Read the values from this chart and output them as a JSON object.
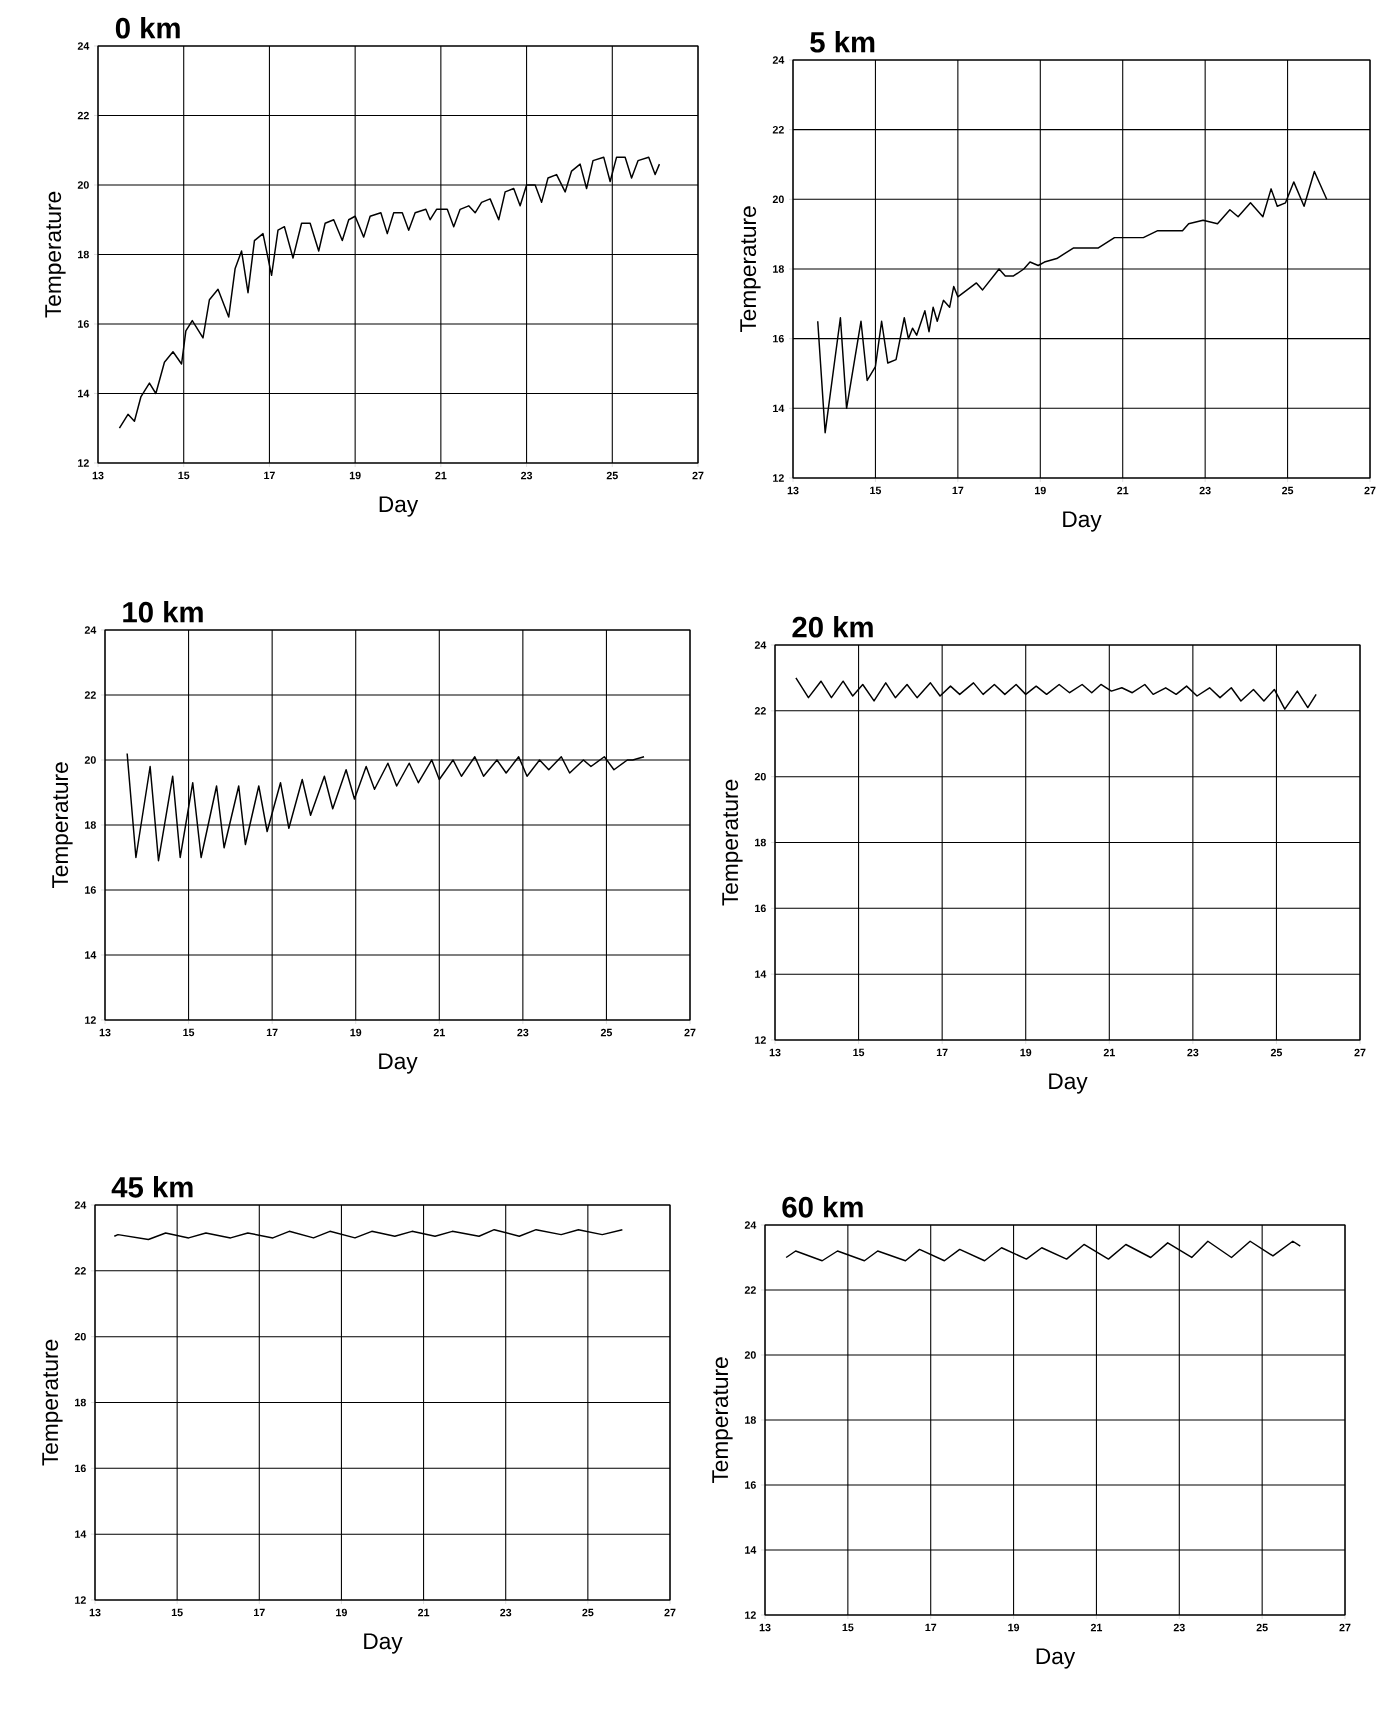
{
  "chart_data": [
    {
      "type": "line",
      "title": "0 km",
      "xlabel": "Day",
      "ylabel": "Temperature",
      "color": "#000000",
      "grid": true,
      "xlim": [
        13,
        27
      ],
      "xticks": [
        13,
        15,
        17,
        19,
        21,
        23,
        25,
        27
      ],
      "ylim": [
        12,
        24
      ],
      "yticks": [
        12,
        14,
        16,
        18,
        20,
        22,
        24
      ],
      "x": [
        13.5,
        13.7,
        13.85,
        14.0,
        14.2,
        14.35,
        14.55,
        14.75,
        14.95,
        15.05,
        15.2,
        15.45,
        15.6,
        15.8,
        16.05,
        16.2,
        16.35,
        16.5,
        16.65,
        16.85,
        17.05,
        17.2,
        17.35,
        17.55,
        17.75,
        17.95,
        18.15,
        18.3,
        18.5,
        18.7,
        18.85,
        19.0,
        19.2,
        19.35,
        19.6,
        19.75,
        19.9,
        20.1,
        20.25,
        20.4,
        20.65,
        20.75,
        20.9,
        21.15,
        21.3,
        21.45,
        21.65,
        21.8,
        21.95,
        22.15,
        22.35,
        22.5,
        22.7,
        22.85,
        23.0,
        23.2,
        23.35,
        23.5,
        23.7,
        23.9,
        24.05,
        24.25,
        24.4,
        24.55,
        24.8,
        24.95,
        25.1,
        25.3,
        25.45,
        25.6,
        25.85,
        26.0,
        26.1
      ],
      "values": [
        13.0,
        13.4,
        13.2,
        13.9,
        14.3,
        14.0,
        14.9,
        15.2,
        14.85,
        15.8,
        16.1,
        15.6,
        16.7,
        17.0,
        16.2,
        17.6,
        18.1,
        16.9,
        18.4,
        18.6,
        17.4,
        18.7,
        18.8,
        17.9,
        18.9,
        18.9,
        18.1,
        18.9,
        19.0,
        18.4,
        19.0,
        19.1,
        18.5,
        19.1,
        19.2,
        18.6,
        19.2,
        19.2,
        18.7,
        19.2,
        19.3,
        19.0,
        19.3,
        19.3,
        18.8,
        19.3,
        19.4,
        19.2,
        19.5,
        19.6,
        19.0,
        19.8,
        19.9,
        19.4,
        20.0,
        20.0,
        19.5,
        20.2,
        20.3,
        19.8,
        20.4,
        20.6,
        19.9,
        20.7,
        20.8,
        20.1,
        20.8,
        20.8,
        20.2,
        20.7,
        20.8,
        20.3,
        20.6
      ]
    },
    {
      "type": "line",
      "title": "5 km",
      "xlabel": "Day",
      "ylabel": "Temperature",
      "color": "#000000",
      "grid": true,
      "xlim": [
        13,
        27
      ],
      "xticks": [
        13,
        15,
        17,
        19,
        21,
        23,
        25,
        27
      ],
      "ylim": [
        12,
        24
      ],
      "yticks": [
        12,
        14,
        16,
        18,
        20,
        22,
        24
      ],
      "x": [
        13.6,
        13.78,
        14.15,
        14.3,
        14.65,
        14.8,
        15.0,
        15.15,
        15.3,
        15.5,
        15.7,
        15.8,
        15.9,
        16.0,
        16.2,
        16.3,
        16.4,
        16.5,
        16.65,
        16.8,
        16.9,
        17.0,
        17.45,
        17.6,
        18.0,
        18.15,
        18.35,
        18.6,
        18.75,
        18.95,
        19.1,
        19.4,
        19.8,
        20.1,
        20.4,
        20.8,
        21.05,
        21.5,
        21.85,
        22.45,
        22.6,
        22.95,
        23.3,
        23.6,
        23.8,
        24.1,
        24.4,
        24.6,
        24.75,
        24.95,
        25.15,
        25.4,
        25.65,
        25.95
      ],
      "values": [
        16.5,
        13.3,
        16.6,
        14.0,
        16.5,
        14.8,
        15.2,
        16.5,
        15.3,
        15.4,
        16.6,
        16.0,
        16.3,
        16.1,
        16.8,
        16.2,
        16.9,
        16.5,
        17.1,
        16.9,
        17.5,
        17.2,
        17.6,
        17.4,
        18.0,
        17.8,
        17.8,
        18.0,
        18.2,
        18.1,
        18.2,
        18.3,
        18.6,
        18.6,
        18.6,
        18.9,
        18.9,
        18.9,
        19.1,
        19.1,
        19.3,
        19.4,
        19.3,
        19.7,
        19.5,
        19.9,
        19.5,
        20.3,
        19.8,
        19.9,
        20.5,
        19.8,
        20.8,
        20.0
      ]
    },
    {
      "type": "line",
      "title": "10 km",
      "xlabel": "Day",
      "ylabel": "Temperature",
      "color": "#000000",
      "grid": true,
      "xlim": [
        13,
        27
      ],
      "xticks": [
        13,
        15,
        17,
        19,
        21,
        23,
        25,
        27
      ],
      "ylim": [
        12,
        24
      ],
      "yticks": [
        12,
        14,
        16,
        18,
        20,
        22,
        24
      ],
      "x": [
        13.53,
        13.74,
        14.08,
        14.28,
        14.62,
        14.8,
        15.1,
        15.3,
        15.67,
        15.85,
        16.2,
        16.36,
        16.68,
        16.88,
        17.2,
        17.4,
        17.72,
        17.92,
        18.25,
        18.45,
        18.77,
        18.97,
        19.25,
        19.45,
        19.77,
        19.98,
        20.28,
        20.5,
        20.82,
        21.0,
        21.33,
        21.53,
        21.85,
        22.06,
        22.38,
        22.6,
        22.9,
        23.1,
        23.4,
        23.62,
        23.92,
        24.12,
        24.45,
        24.63,
        24.95,
        25.18,
        25.5,
        25.63,
        25.9
      ],
      "values": [
        20.2,
        17.0,
        19.8,
        16.9,
        19.5,
        17.0,
        19.3,
        17.0,
        19.2,
        17.3,
        19.2,
        17.4,
        19.2,
        17.8,
        19.3,
        17.9,
        19.4,
        18.3,
        19.5,
        18.5,
        19.7,
        18.8,
        19.8,
        19.1,
        19.9,
        19.2,
        19.9,
        19.3,
        20.0,
        19.4,
        20.0,
        19.5,
        20.1,
        19.5,
        20.0,
        19.6,
        20.1,
        19.5,
        20.0,
        19.7,
        20.1,
        19.6,
        20.0,
        19.8,
        20.1,
        19.7,
        20.0,
        20.0,
        20.1
      ]
    },
    {
      "type": "line",
      "title": "20 km",
      "xlabel": "Day",
      "ylabel": "Temperature",
      "color": "#000000",
      "grid": true,
      "xlim": [
        13,
        27
      ],
      "xticks": [
        13,
        15,
        17,
        19,
        21,
        23,
        25,
        27
      ],
      "ylim": [
        12,
        24
      ],
      "yticks": [
        12,
        14,
        16,
        18,
        20,
        22,
        24
      ],
      "x": [
        13.5,
        13.8,
        14.1,
        14.35,
        14.63,
        14.86,
        15.1,
        15.37,
        15.65,
        15.88,
        16.16,
        16.4,
        16.72,
        16.95,
        17.2,
        17.42,
        17.75,
        17.98,
        18.25,
        18.5,
        18.77,
        19.0,
        19.25,
        19.5,
        19.8,
        20.05,
        20.35,
        20.58,
        20.8,
        21.05,
        21.3,
        21.55,
        21.85,
        22.05,
        22.35,
        22.6,
        22.85,
        23.1,
        23.4,
        23.65,
        23.92,
        24.15,
        24.45,
        24.7,
        24.95,
        25.2,
        25.5,
        25.75,
        25.95
      ],
      "values": [
        23.0,
        22.4,
        22.9,
        22.4,
        22.9,
        22.45,
        22.8,
        22.3,
        22.85,
        22.4,
        22.8,
        22.4,
        22.85,
        22.45,
        22.75,
        22.5,
        22.85,
        22.5,
        22.8,
        22.5,
        22.8,
        22.5,
        22.75,
        22.5,
        22.8,
        22.55,
        22.8,
        22.55,
        22.8,
        22.6,
        22.7,
        22.55,
        22.8,
        22.5,
        22.7,
        22.5,
        22.75,
        22.45,
        22.7,
        22.4,
        22.7,
        22.3,
        22.65,
        22.3,
        22.65,
        22.05,
        22.6,
        22.1,
        22.5
      ]
    },
    {
      "type": "line",
      "title": "45 km",
      "xlabel": "Day",
      "ylabel": "Temperature",
      "color": "#000000",
      "grid": true,
      "xlim": [
        13,
        27
      ],
      "xticks": [
        13,
        15,
        17,
        19,
        21,
        23,
        25,
        27
      ],
      "ylim": [
        12,
        24
      ],
      "yticks": [
        12,
        14,
        16,
        18,
        20,
        22,
        24
      ],
      "x": [
        13.47,
        13.56,
        14.3,
        14.72,
        15.28,
        15.7,
        16.3,
        16.72,
        17.33,
        17.73,
        18.32,
        18.72,
        19.33,
        19.74,
        20.3,
        20.72,
        21.28,
        21.7,
        22.35,
        22.72,
        23.33,
        23.74,
        24.35,
        24.77,
        25.35,
        25.84
      ],
      "values": [
        23.05,
        23.1,
        22.95,
        23.15,
        23.0,
        23.15,
        23.0,
        23.15,
        23.0,
        23.2,
        23.0,
        23.2,
        23.0,
        23.2,
        23.05,
        23.2,
        23.05,
        23.2,
        23.05,
        23.25,
        23.05,
        23.25,
        23.1,
        23.25,
        23.1,
        23.25
      ]
    },
    {
      "type": "line",
      "title": "60 km",
      "xlabel": "Day",
      "ylabel": "Temperature",
      "color": "#000000",
      "grid": true,
      "xlim": [
        13,
        27
      ],
      "xticks": [
        13,
        15,
        17,
        19,
        21,
        23,
        25,
        27
      ],
      "ylim": [
        12,
        24
      ],
      "yticks": [
        12,
        14,
        16,
        18,
        20,
        22,
        24
      ],
      "x": [
        13.51,
        13.74,
        14.38,
        14.75,
        15.4,
        15.72,
        16.39,
        16.73,
        17.33,
        17.7,
        18.3,
        18.71,
        19.31,
        19.68,
        20.28,
        20.7,
        21.29,
        21.71,
        22.31,
        22.72,
        23.3,
        23.69,
        24.26,
        24.71,
        25.26,
        25.74,
        25.92
      ],
      "values": [
        23.0,
        23.2,
        22.9,
        23.2,
        22.9,
        23.2,
        22.9,
        23.25,
        22.9,
        23.25,
        22.9,
        23.3,
        22.95,
        23.3,
        22.95,
        23.4,
        22.95,
        23.4,
        23.0,
        23.45,
        23.0,
        23.5,
        23.0,
        23.5,
        23.05,
        23.5,
        23.35
      ]
    }
  ]
}
